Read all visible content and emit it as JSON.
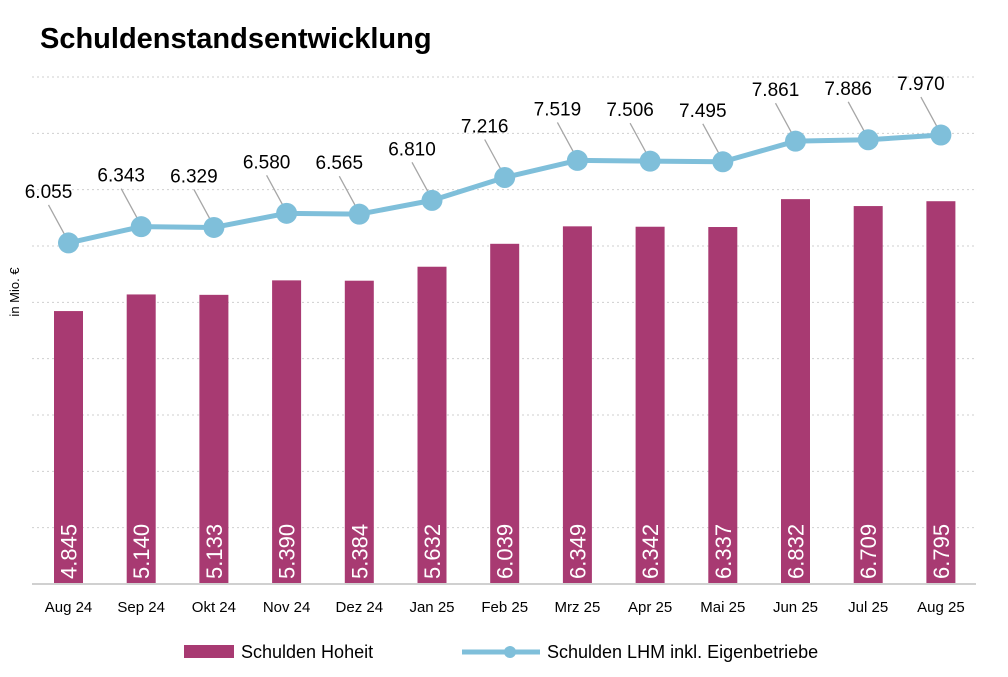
{
  "chart_data": {
    "type": "bar+line",
    "title": "Schuldenstandsentwicklung",
    "ylabel": "in Mio. €",
    "xlabel": "",
    "ylim": [
      0,
      9000
    ],
    "grid": true,
    "gridStep": 1000,
    "legend": "bottom-center",
    "categories": [
      "Aug 24",
      "Sep 24",
      "Okt 24",
      "Nov 24",
      "Dez 24",
      "Jan 25",
      "Feb 25",
      "Mrz 25",
      "Apr 25",
      "Mai 25",
      "Jun 25",
      "Jul 25",
      "Aug 25"
    ],
    "series": [
      {
        "name": "Schulden Hoheit",
        "type": "bar",
        "color": "#A83A72",
        "values": [
          4845,
          5140,
          5133,
          5390,
          5384,
          5632,
          6039,
          6349,
          6342,
          6337,
          6832,
          6709,
          6795
        ],
        "labels": [
          "4.845",
          "5.140",
          "5.133",
          "5.390",
          "5.384",
          "5.632",
          "6.039",
          "6.349",
          "6.342",
          "6.337",
          "6.832",
          "6.709",
          "6.795"
        ]
      },
      {
        "name": "Schulden LHM inkl. Eigenbetriebe",
        "type": "line",
        "color": "#7FBFDA",
        "values": [
          6055,
          6343,
          6329,
          6580,
          6565,
          6810,
          7216,
          7519,
          7506,
          7495,
          7861,
          7886,
          7970
        ],
        "labels": [
          "6.055",
          "6.343",
          "6.329",
          "6.580",
          "6.565",
          "6.810",
          "7.216",
          "7.519",
          "7.506",
          "7.495",
          "7.861",
          "7.886",
          "7.970"
        ]
      }
    ]
  }
}
